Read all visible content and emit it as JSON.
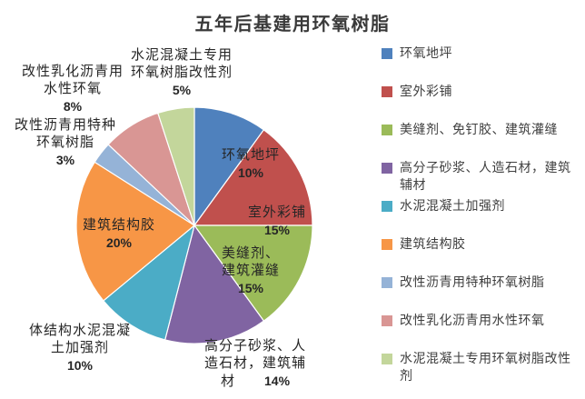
{
  "chart_data": {
    "type": "pie",
    "title": "五年后基建用环氧树脂",
    "start_angle_deg": 0,
    "direction": "clockwise",
    "legend_position": "right",
    "label_unit": "%",
    "slices": [
      {
        "name": "环氧地坪",
        "value": 10,
        "color": "#4F81BD",
        "label_lines": [
          "环氧地坪",
          "10%"
        ],
        "label_placement": "inside"
      },
      {
        "name": "室外彩铺",
        "value": 15,
        "color": "#C0504D",
        "label_lines": [
          "室外彩铺",
          "15%"
        ],
        "label_placement": "inside"
      },
      {
        "name": "美缝剂、免钉胶、建筑灌缝",
        "value": 15,
        "color": "#9BBB59",
        "label_lines": [
          "美缝剂、",
          "建筑灌缝",
          "15%"
        ],
        "label_placement": "inside"
      },
      {
        "name": "高分子砂浆、人造石材，建筑辅材",
        "value": 14,
        "color": "#8064A2",
        "label_lines": [
          "高分子砂浆、人",
          "造石材，建筑辅",
          "材　　14%"
        ],
        "label_placement": "outside"
      },
      {
        "name": "水泥混凝土加强剂",
        "value": 10,
        "color": "#4BACC6",
        "label_lines": [
          "体结构水泥混凝",
          "土加强剂",
          "10%"
        ],
        "label_placement": "outside"
      },
      {
        "name": "建筑结构胶",
        "value": 20,
        "color": "#F79646",
        "label_lines": [
          "建筑结构胶",
          "20%"
        ],
        "label_placement": "inside"
      },
      {
        "name": "改性沥青用特种环氧树脂",
        "value": 3,
        "color": "#95B3D7",
        "label_lines": [
          "改性沥青用特种",
          "环氧树脂",
          "3%"
        ],
        "label_placement": "outside"
      },
      {
        "name": "改性乳化沥青用水性环氧",
        "value": 8,
        "color": "#D99694",
        "label_lines": [
          "改性乳化沥青用",
          "水性环氧",
          "8%"
        ],
        "label_placement": "outside"
      },
      {
        "name": "水泥混凝土专用环氧树脂改性剂",
        "value": 5,
        "color": "#C3D69B",
        "label_lines": [
          "水泥混凝土专用",
          "环氧树脂改性剂",
          "5%"
        ],
        "label_placement": "outside"
      }
    ]
  }
}
